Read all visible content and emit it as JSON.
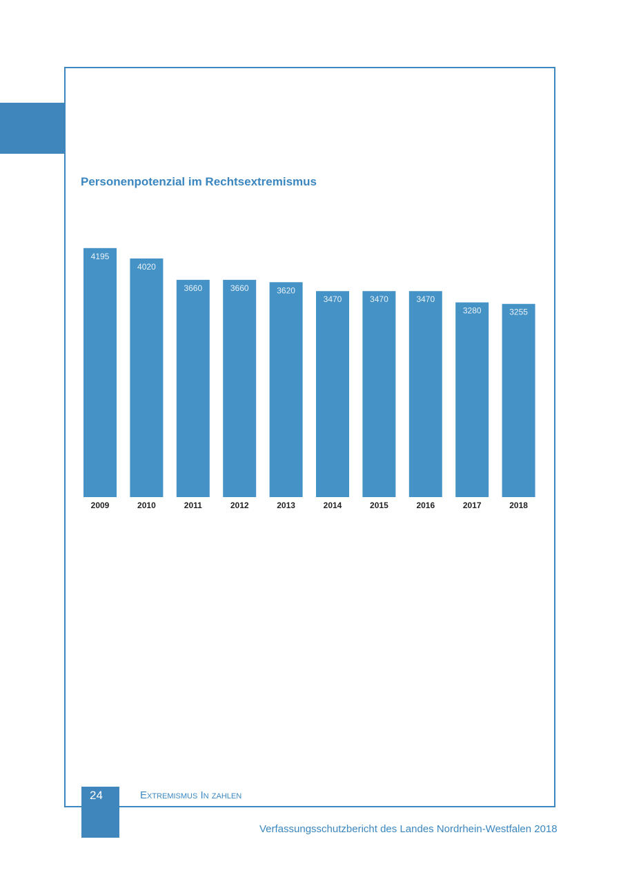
{
  "colors": {
    "accent": "#3f86bd",
    "bar": "#4592c6",
    "label_on_bar": "#e8f1f8"
  },
  "chart_data": {
    "type": "bar",
    "title": "Personenpotenzial im Rechtsextremismus",
    "categories": [
      "2009",
      "2010",
      "2011",
      "2012",
      "2013",
      "2014",
      "2015",
      "2016",
      "2017",
      "2018"
    ],
    "values": [
      4195,
      4020,
      3660,
      3660,
      3620,
      3470,
      3470,
      3470,
      3280,
      3255
    ],
    "xlabel": "",
    "ylabel": "",
    "data_labels": "inside-top",
    "grid": false,
    "legend": "none"
  },
  "footer": {
    "page_number": "24",
    "section": "Extremismus In zahlen",
    "publication": "Verfassungsschutzbericht des Landes Nordrhein-Westfalen 2018"
  }
}
